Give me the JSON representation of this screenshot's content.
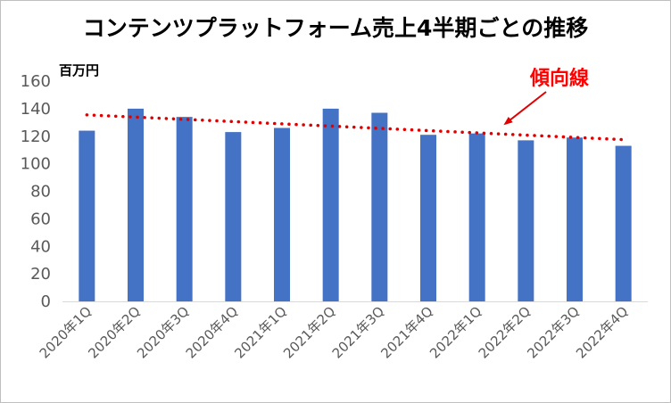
{
  "chart_data": {
    "type": "bar",
    "title": "コンテンツプラットフォーム売上4半期ごとの推移",
    "ylabel": "百万円",
    "ylim": [
      0,
      160
    ],
    "yticks": [
      0,
      20,
      40,
      60,
      80,
      100,
      120,
      140,
      160
    ],
    "categories": [
      "2020年1Q",
      "2020年2Q",
      "2020年3Q",
      "2020年4Q",
      "2021年1Q",
      "2021年2Q",
      "2021年3Q",
      "2021年4Q",
      "2022年1Q",
      "2022年2Q",
      "2022年3Q",
      "2022年4Q"
    ],
    "series": [
      {
        "values": [
          124,
          140,
          134,
          123,
          126,
          140,
          137,
          121,
          122,
          117,
          119,
          113
        ],
        "color": "#4472c4"
      }
    ],
    "trendline": {
      "label": "傾向線",
      "style": "dotted",
      "color": "#e00000",
      "start": 135.5,
      "end": 117.5
    },
    "grid": false,
    "legend": "none"
  }
}
